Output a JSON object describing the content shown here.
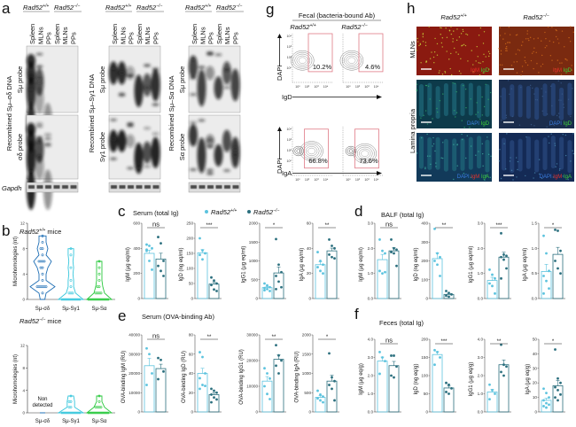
{
  "genotype": {
    "base": "Rad52",
    "wt_sup": "+/+",
    "ko_sup": "−/−"
  },
  "colors": {
    "wt": "#5cc3de",
    "ko": "#2b6f7e",
    "violin_sd": "#1f6fb5",
    "violin_g1": "#36c6dc",
    "violin_a": "#28c83c",
    "gate": "#e07a86"
  },
  "panel_a": {
    "letter": "a",
    "lanes": [
      "Spleen",
      "MLNs",
      "PPs",
      "Spleen",
      "MLNs",
      "PPs"
    ],
    "groups": [
      {
        "title": "Recombined Sμ–σδ DNA",
        "probe_top": "Sμ probe",
        "probe_bottom": "σδ probe"
      },
      {
        "title": "Recombined Sμ–Sγ1 DNA",
        "probe_top": "Sμ probe",
        "probe_bottom": "Sγ1 probe"
      },
      {
        "title": "Recombined Sμ–Sα DNA",
        "probe_top": "Sμ probe",
        "probe_bottom": "Sα probe"
      }
    ],
    "loading_control": "Gapdh"
  },
  "panel_b": {
    "letter": "b",
    "wt_title_suffix": " mice",
    "ko_title_suffix": " mice",
    "ylabel": "Microhomologies (nt)",
    "yticks": [
      "0",
      "4",
      "8",
      "12"
    ],
    "categories": [
      "Sμ-σδ",
      "Sμ-Sγ1",
      "Sμ-Sα"
    ],
    "not_detected": [
      "Non",
      "detected"
    ],
    "wt_values": [
      [
        1,
        2,
        2,
        2,
        2,
        2,
        2,
        3,
        4,
        5,
        5,
        6,
        6,
        6,
        6,
        7,
        8,
        8,
        9,
        10
      ],
      [
        0,
        0,
        0,
        0,
        0,
        0,
        0,
        0,
        0,
        0,
        0,
        1,
        1,
        1,
        2,
        3,
        5,
        7,
        8
      ],
      [
        0,
        0,
        0,
        0,
        0,
        0,
        0,
        0,
        0,
        0,
        0,
        0,
        1,
        1,
        1,
        1,
        2,
        2,
        3,
        4,
        5,
        6
      ]
    ],
    "ko_values": [
      [],
      [
        0,
        0,
        0,
        0,
        0,
        0,
        0,
        0,
        0,
        0,
        0,
        1,
        1,
        2,
        2,
        3
      ],
      [
        0,
        0,
        0,
        0,
        0,
        0,
        0,
        0,
        0,
        0,
        0,
        0,
        1,
        1,
        1,
        1,
        2,
        3
      ]
    ]
  },
  "legend": {
    "wt": "Rad52",
    "ko": "Rad52"
  },
  "chart_data": [
    {
      "panel": "c",
      "letter": "c",
      "title": "Serum (total Ig)",
      "type": "bar",
      "charts": [
        {
          "ylabel": "IgM (μg eq/ml)",
          "ylim": [
            0,
            600
          ],
          "yticks": [
            "0",
            "200",
            "400",
            "600"
          ],
          "sig": "ns",
          "wt_mean": 360,
          "ko_mean": 315,
          "wt_points": [
            430,
            420,
            400,
            380,
            300,
            230,
            390
          ],
          "ko_points": [
            490,
            440,
            300,
            260,
            220,
            180
          ]
        },
        {
          "ylabel": "IgD (ng eq/ml)",
          "ylim": [
            0,
            250
          ],
          "yticks": [
            "0",
            "50",
            "100",
            "150",
            "200",
            "250"
          ],
          "sig": "***",
          "wt_mean": 152,
          "ko_mean": 48,
          "wt_points": [
            200,
            160,
            150,
            145,
            130
          ],
          "ko_points": [
            70,
            60,
            50,
            45,
            30,
            25
          ]
        },
        {
          "ylabel": "IgG1 (μg eq/ml)",
          "ylim": [
            0,
            2000
          ],
          "yticks": [
            "0",
            "500",
            "1000",
            "1500",
            "2000"
          ],
          "sig": "*",
          "wt_mean": 290,
          "ko_mean": 680,
          "wt_points": [
            400,
            350,
            300,
            280,
            250,
            200,
            220
          ],
          "ko_points": [
            1580,
            900,
            700,
            600,
            450,
            300,
            250
          ]
        },
        {
          "ylabel": "IgA (μg eq/ml)",
          "ylim": [
            0,
            60
          ],
          "yticks": [
            "0",
            "20",
            "40",
            "60"
          ],
          "sig": "**",
          "wt_mean": 27,
          "ko_mean": 38,
          "wt_points": [
            37,
            30,
            27,
            25,
            22,
            20
          ],
          "ko_points": [
            47,
            42,
            40,
            35,
            33,
            32
          ]
        }
      ]
    },
    {
      "panel": "e",
      "letter": "e",
      "title": "Serum (OVA-binding Ab)",
      "type": "bar",
      "charts": [
        {
          "ylabel": "OVA-binding IgM (RU)",
          "ylim": [
            0,
            40000
          ],
          "yticks": [
            "0",
            "10000",
            "20000",
            "30000",
            "40000"
          ],
          "sig": "ns",
          "wt_mean": 24000,
          "ko_mean": 22500,
          "wt_points": [
            33000,
            30000,
            20000,
            14000
          ],
          "ko_points": [
            28000,
            27000,
            21000,
            17000
          ]
        },
        {
          "ylabel": "OVA-binding IgD (RU)",
          "ylim": [
            0,
            80
          ],
          "yticks": [
            "0",
            "20",
            "40",
            "60",
            "80"
          ],
          "sig": "**",
          "wt_mean": 40,
          "ko_mean": 18,
          "wt_points": [
            62,
            57,
            40,
            35,
            28,
            27,
            24
          ],
          "ko_points": [
            24,
            22,
            20,
            18,
            15,
            13,
            10
          ]
        },
        {
          "ylabel": "OVA-binding IgG1 (RU)",
          "ylim": [
            0,
            30000
          ],
          "yticks": [
            "0",
            "10000",
            "20000",
            "30000"
          ],
          "sig": "**",
          "wt_mean": 12000,
          "ko_mean": 20500,
          "wt_points": [
            17000,
            15000,
            13000,
            10000,
            7000,
            5000
          ],
          "ko_points": [
            26000,
            22000,
            20000,
            18000,
            15000
          ]
        },
        {
          "ylabel": "OVA-binding IgA (RU)",
          "ylim": [
            0,
            2000
          ],
          "yticks": [
            "0",
            "500",
            "1000",
            "1500",
            "2000"
          ],
          "sig": "*",
          "wt_mean": 380,
          "ko_mean": 800,
          "wt_points": [
            550,
            450,
            400,
            350,
            300,
            250
          ],
          "ko_points": [
            1520,
            900,
            800,
            700,
            600,
            300
          ]
        }
      ]
    },
    {
      "panel": "d",
      "letter": "d",
      "title": "BALF (total Ig)",
      "type": "bar",
      "charts": [
        {
          "ylabel": "IgM (μg eq/ml)",
          "ylim": [
            0,
            3
          ],
          "yticks": [
            "0.0",
            "1.0",
            "2.0",
            "3.0"
          ],
          "sig": "ns",
          "wt_mean": 1.55,
          "ko_mean": 1.9,
          "wt_points": [
            2.35,
            1.9,
            1.8,
            1.1,
            1.0,
            1.05
          ],
          "ko_points": [
            2.35,
            2.0,
            1.95,
            1.85,
            1.8,
            1.3
          ]
        },
        {
          "ylabel": "IgD (ng eq/ml)",
          "ylim": [
            0,
            400
          ],
          "yticks": [
            "0",
            "100",
            "200",
            "300",
            "400"
          ],
          "sig": "**",
          "wt_mean": 212,
          "ko_mean": 22,
          "wt_points": [
            370,
            240,
            220,
            200,
            180,
            120
          ],
          "ko_points": [
            40,
            30,
            22,
            15,
            10
          ]
        },
        {
          "ylabel": "IgG1 (μg eq/ml)",
          "ylim": [
            0,
            3
          ],
          "yticks": [
            "0.0",
            "1.0",
            "2.0",
            "3.0"
          ],
          "sig": "***",
          "wt_mean": 0.72,
          "ko_mean": 1.65,
          "wt_points": [
            1.15,
            0.95,
            0.8,
            0.6,
            0.5,
            0.2
          ],
          "ko_points": [
            2.6,
            1.75,
            1.7,
            1.65,
            1.55,
            1.2,
            0.8
          ]
        },
        {
          "ylabel": "IgA (μg eq/ml)",
          "ylim": [
            0,
            1.5
          ],
          "yticks": [
            "0.0",
            "0.5",
            "1.0",
            "1.5"
          ],
          "sig": "*",
          "wt_mean": 0.54,
          "ko_mean": 0.88,
          "wt_points": [
            1.25,
            0.9,
            0.55,
            0.45,
            0.35,
            0.2,
            0.1
          ],
          "ko_points": [
            1.37,
            1.35,
            0.95,
            0.75,
            0.6,
            0.5
          ]
        }
      ]
    },
    {
      "panel": "f",
      "letter": "f",
      "title": "Feces (total Ig)",
      "type": "bar",
      "charts": [
        {
          "ylabel": "IgM (μg eq/g)",
          "ylim": [
            0,
            4
          ],
          "yticks": [
            "0.0",
            "1.0",
            "2.0",
            "3.0",
            "4.0"
          ],
          "sig": "ns",
          "wt_mean": 2.8,
          "ko_mean": 2.55,
          "wt_points": [
            3.3,
            3.0,
            2.8,
            2.1
          ],
          "ko_points": [
            3.1,
            3.1,
            2.5,
            2.0,
            1.9
          ]
        },
        {
          "ylabel": "IgD (ng eq/g)",
          "ylim": [
            0,
            200
          ],
          "yticks": [
            "0",
            "50",
            "100",
            "150",
            "200"
          ],
          "sig": "***",
          "wt_mean": 158,
          "ko_mean": 66,
          "wt_points": [
            170,
            165,
            150,
            130
          ],
          "ko_points": [
            80,
            75,
            65,
            55,
            50
          ]
        },
        {
          "ylabel": "IgG1 (μg eq/g)",
          "ylim": [
            0,
            4
          ],
          "yticks": [
            "0.0",
            "1.0",
            "2.0",
            "3.0",
            "4.0"
          ],
          "sig": "**",
          "wt_mean": 1.1,
          "ko_mean": 2.6,
          "wt_points": [
            1.5,
            1.2,
            1.0,
            0.7
          ],
          "ko_points": [
            3.7,
            2.6,
            2.5,
            2.2,
            2.0
          ]
        },
        {
          "ylabel": "IgA (μg eq/g)",
          "ylim": [
            0,
            50
          ],
          "yticks": [
            "0",
            "10",
            "20",
            "30",
            "40",
            "50"
          ],
          "sig": "*",
          "wt_mean": 8,
          "ko_mean": 18,
          "wt_points": [
            16,
            13,
            10,
            8,
            6,
            5,
            4,
            3
          ],
          "ko_points": [
            43,
            23,
            20,
            17,
            15,
            12,
            10,
            8
          ]
        }
      ]
    }
  ],
  "panel_g": {
    "letter": "g",
    "title": "Fecal (bacteria-bound Ab)",
    "yaxis": "DAPI",
    "yticks": [
      "10⁴",
      "10³",
      "10²",
      "10⁰"
    ],
    "xticks": [
      "10⁰",
      "10²",
      "10³",
      "10⁴"
    ],
    "rows": [
      {
        "xaxis": "IgD",
        "wt_percent": "10.2%",
        "ko_percent": "4.6%"
      },
      {
        "xaxis": "IgA",
        "wt_percent": "66.8%",
        "ko_percent": "73.6%"
      }
    ]
  },
  "panel_h": {
    "letter": "h",
    "row_labels": [
      "MLNs",
      "Lamina propria"
    ],
    "stain_rows": [
      [
        {
          "text": "IgM",
          "color": "#e8322b"
        },
        {
          "text": "IgD",
          "color": "#3fd23a"
        }
      ],
      [
        {
          "text": "DAPI",
          "color": "#3a7de0"
        },
        {
          "text": "IgD",
          "color": "#3fd23a"
        }
      ],
      [
        {
          "text": "DAPI",
          "color": "#3a7de0"
        },
        {
          "text": "IgM",
          "color": "#e8322b"
        },
        {
          "text": "IgA",
          "color": "#3fd23a"
        }
      ]
    ]
  }
}
